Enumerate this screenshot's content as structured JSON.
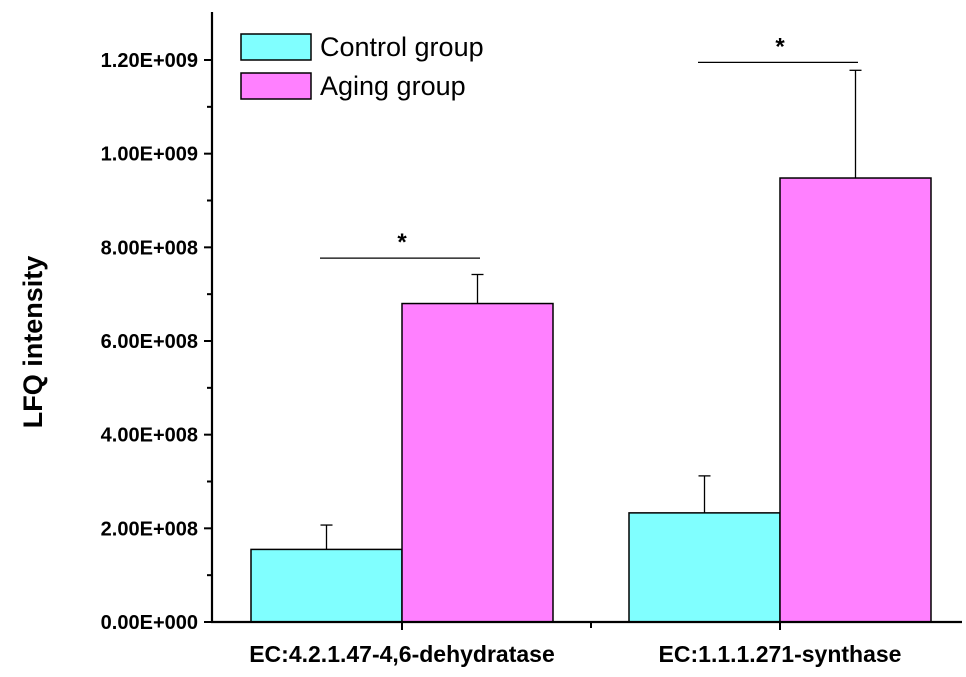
{
  "chart_data": {
    "type": "bar",
    "title": "",
    "xlabel": "",
    "ylabel": "LFQ intensity",
    "ylim": [
      0,
      1300000000
    ],
    "yticks": [
      0,
      200000000,
      400000000,
      600000000,
      800000000,
      1000000000,
      1200000000
    ],
    "ytick_labels": [
      "0.00E+000",
      "2.00E+008",
      "4.00E+008",
      "6.00E+008",
      "8.00E+008",
      "1.00E+009",
      "1.20E+009"
    ],
    "categories": [
      "EC:4.2.1.47-4,6-dehydratase",
      "EC:1.1.1.271-synthase"
    ],
    "series": [
      {
        "name": "Control group",
        "color": "#80FFFF",
        "values": [
          155000000,
          233000000
        ],
        "errors": [
          52000000,
          79000000
        ]
      },
      {
        "name": "Aging group",
        "color": "#FF80FF",
        "values": [
          680000000,
          948000000
        ],
        "errors": [
          62000000,
          230000000
        ]
      }
    ],
    "significance": [
      {
        "category_index": 0,
        "label": "*",
        "y": 777000000
      },
      {
        "category_index": 1,
        "label": "*",
        "y": 1195000000
      }
    ],
    "legend": {
      "position": "top-left"
    },
    "grid": false
  }
}
